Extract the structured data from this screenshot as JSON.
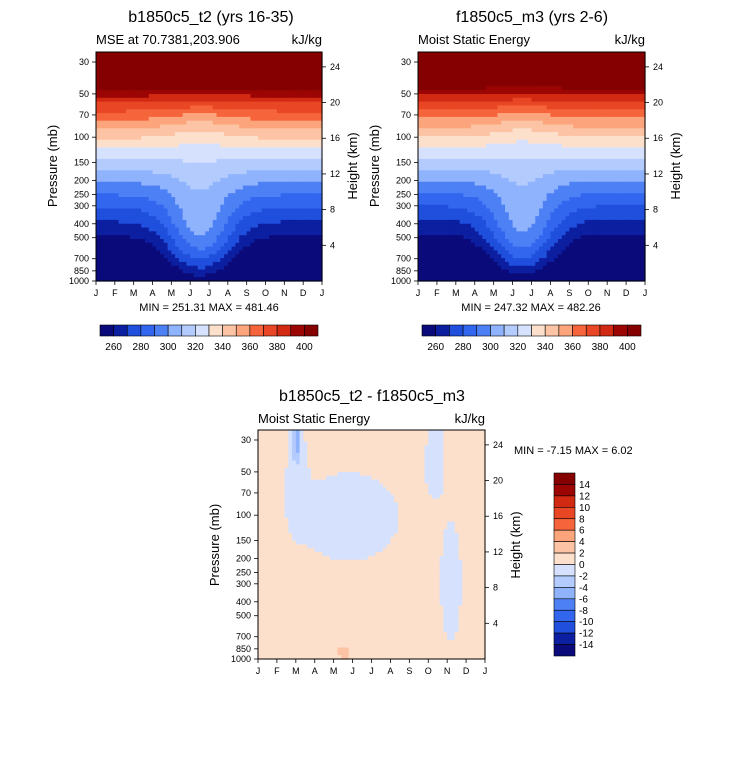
{
  "chart_data": [
    {
      "type": "heatmap",
      "title": "b1850c5_t2 (yrs 16-35)",
      "left_label": "MSE at 70.7381,203.906",
      "right_label": "kJ/kg",
      "ylabel": "Pressure (mb)",
      "ylabel_right": "Height (km)",
      "x_ticks": [
        "J",
        "F",
        "M",
        "A",
        "M",
        "J",
        "J",
        "A",
        "S",
        "O",
        "N",
        "D",
        "J"
      ],
      "y_ticks": [
        "30",
        "50",
        "70",
        "100",
        "150",
        "200",
        "250",
        "300",
        "400",
        "500",
        "700",
        "850",
        "1000"
      ],
      "y_right_ticks": [
        "24",
        "20",
        "16",
        "12",
        "8",
        "4"
      ],
      "stats": "MIN = 251.31 MAX = 481.46",
      "colorbar_labels": [
        "260",
        "280",
        "300",
        "320",
        "340",
        "360",
        "380",
        "400"
      ],
      "levels": [
        260,
        270,
        280,
        290,
        300,
        310,
        320,
        330,
        340,
        350,
        360,
        370,
        380,
        390,
        400
      ],
      "min": 251.31,
      "max": 481.46
    },
    {
      "type": "heatmap",
      "title": "f1850c5_m3 (yrs 2-6)",
      "left_label": "Moist Static Energy",
      "right_label": "kJ/kg",
      "ylabel": "Pressure (mb)",
      "ylabel_right": "Height (km)",
      "x_ticks": [
        "J",
        "F",
        "M",
        "A",
        "M",
        "J",
        "J",
        "A",
        "S",
        "O",
        "N",
        "D",
        "J"
      ],
      "y_ticks": [
        "30",
        "50",
        "70",
        "100",
        "150",
        "200",
        "250",
        "300",
        "400",
        "500",
        "700",
        "850",
        "1000"
      ],
      "y_right_ticks": [
        "24",
        "20",
        "16",
        "12",
        "8",
        "4"
      ],
      "stats": "MIN = 247.32 MAX = 482.26",
      "colorbar_labels": [
        "260",
        "280",
        "300",
        "320",
        "340",
        "360",
        "380",
        "400"
      ],
      "levels": [
        260,
        270,
        280,
        290,
        300,
        310,
        320,
        330,
        340,
        350,
        360,
        370,
        380,
        390,
        400
      ],
      "min": 247.32,
      "max": 482.26
    },
    {
      "type": "heatmap",
      "title": "b1850c5_t2 - f1850c5_m3",
      "left_label": "Moist Static Energy",
      "right_label": "kJ/kg",
      "ylabel": "Pressure (mb)",
      "ylabel_right": "Height (km)",
      "x_ticks": [
        "J",
        "F",
        "M",
        "A",
        "M",
        "J",
        "J",
        "A",
        "S",
        "O",
        "N",
        "D",
        "J"
      ],
      "y_ticks": [
        "30",
        "50",
        "70",
        "100",
        "150",
        "200",
        "250",
        "300",
        "400",
        "500",
        "700",
        "850",
        "1000"
      ],
      "y_right_ticks": [
        "24",
        "20",
        "16",
        "12",
        "8",
        "4"
      ],
      "stats": "MIN =  -7.15 MAX =   6.02",
      "colorbar_labels": [
        "14",
        "12",
        "10",
        "8",
        "6",
        "4",
        "2",
        "0",
        "-2",
        "-4",
        "-6",
        "-8",
        "-10",
        "-12",
        "-14"
      ],
      "levels": [
        -14,
        -12,
        -10,
        -8,
        -6,
        -4,
        -2,
        0,
        2,
        4,
        6,
        8,
        10,
        12,
        14
      ],
      "min": -7.15,
      "max": 6.02
    }
  ],
  "colors": {
    "blue_red": [
      "#0a0a7a",
      "#0c1fa0",
      "#1336c6",
      "#1f4fdc",
      "#3366ee",
      "#4d80f5",
      "#6b99fa",
      "#8fb3fc",
      "#b3cbfd",
      "#d6e2fd",
      "#f5f5f5",
      "#fde0cc",
      "#fcc4a4",
      "#fca57c",
      "#fb8459",
      "#f6643b",
      "#e84624",
      "#d22a12",
      "#b81508",
      "#9b0604",
      "#850000"
    ],
    "stroke": "#000000"
  }
}
